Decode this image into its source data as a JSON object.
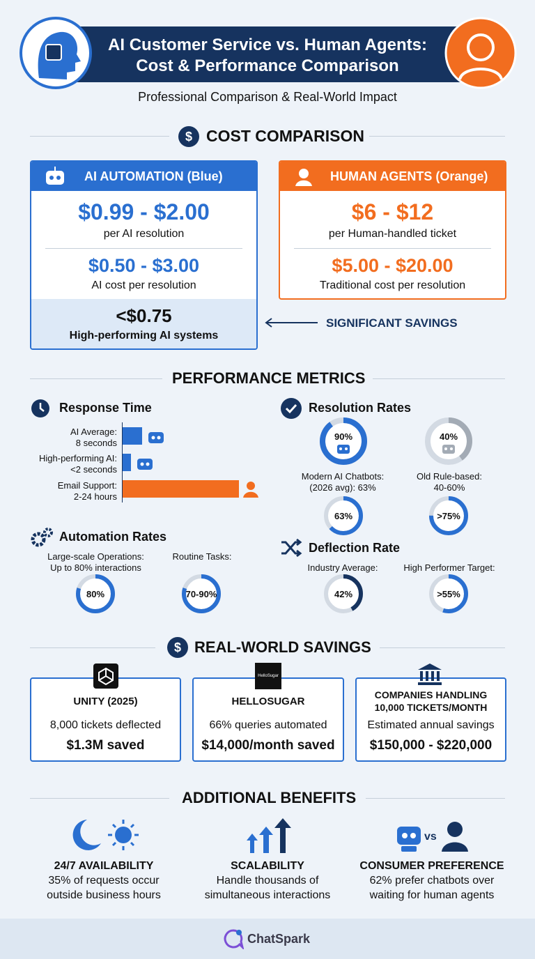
{
  "header": {
    "title_line1": "AI Customer Service vs. Human Agents:",
    "title_line2": "Cost & Performance Comparison",
    "subtitle": "Professional Comparison & Real-World Impact"
  },
  "cost": {
    "heading": "COST COMPARISON",
    "ai": {
      "title": "AI AUTOMATION (Blue)",
      "price1": "$0.99 - $2.00",
      "note1": "per AI resolution",
      "price2": "$0.50 - $3.00",
      "note2": "AI cost per resolution",
      "price3": "<$0.75",
      "note3": "High-performing AI systems"
    },
    "human": {
      "title": "HUMAN AGENTS (Orange)",
      "price1": "$6 - $12",
      "note1": "per Human-handled ticket",
      "price2": "$5.00 - $20.00",
      "note2": "Traditional cost per resolution"
    },
    "savings": "SIGNIFICANT SAVINGS"
  },
  "performance": {
    "heading": "PERFORMANCE METRICS",
    "response_time": {
      "title": "Response Time",
      "rows": [
        [
          "AI Average:",
          "8 seconds"
        ],
        [
          "High-performing AI:",
          "<2 seconds"
        ],
        [
          "Email Support:",
          "2-24 hours"
        ]
      ]
    },
    "resolution_rates": {
      "title": "Resolution Rates",
      "captions": [
        [
          "Modern AI Chatbots:",
          "(2026 avg): 63%"
        ],
        [
          "Old Rule-based:",
          "40-60%"
        ]
      ],
      "gauges": [
        {
          "value": 90,
          "label": "90%",
          "color": "#2a6fd0"
        },
        {
          "value": 40,
          "label": "40%",
          "color": "#a3abb5"
        },
        {
          "value": 63,
          "label": "63%",
          "color": "#2a6fd0"
        },
        {
          "value": 75,
          "label": ">75%",
          "color": "#2a6fd0"
        }
      ]
    },
    "automation": {
      "title": "Automation Rates",
      "captions": [
        [
          "Large-scale Operations:",
          "Up to 80% interactions"
        ],
        [
          "Routine Tasks:"
        ]
      ],
      "gauges": [
        {
          "value": 80,
          "label": "80%",
          "color": "#2a6fd0"
        },
        {
          "value": 80,
          "label": "70-90%",
          "color": "#2a6fd0"
        }
      ]
    },
    "deflection": {
      "title": "Deflection Rate",
      "captions": [
        "Industry Average:",
        "High Performer Target:"
      ],
      "gauges": [
        {
          "value": 42,
          "label": "42%",
          "color": "#16335f"
        },
        {
          "value": 55,
          "label": ">55%",
          "color": "#2a6fd0"
        }
      ]
    }
  },
  "savings": {
    "heading": "REAL-WORLD SAVINGS",
    "logo": "HelloSugar",
    "cards": [
      {
        "title": [
          "UNITY (2025)"
        ],
        "detail": "8,000 tickets deflected",
        "amount": "$1.3M saved"
      },
      {
        "title": [
          "HELLOSUGAR"
        ],
        "detail": "66% queries automated",
        "amount": "$14,000/month saved"
      },
      {
        "title": [
          "COMPANIES HANDLING",
          "10,000 TICKETS/MONTH"
        ],
        "detail": "Estimated annual savings",
        "amount": "$150,000 - $220,000"
      }
    ]
  },
  "benefits": {
    "heading": "ADDITIONAL BENEFITS",
    "vs": "vs",
    "items": [
      {
        "title": "24/7 AVAILABILITY",
        "text": [
          "35% of requests occur",
          "outside business hours"
        ]
      },
      {
        "title": "SCALABILITY",
        "text": [
          "Handle thousands of",
          "simultaneous interactions"
        ]
      },
      {
        "title": "CONSUMER PREFERENCE",
        "text": [
          "62% prefer chatbots over",
          "waiting for human agents"
        ]
      }
    ]
  },
  "footer": {
    "brand": "ChatSpark"
  }
}
